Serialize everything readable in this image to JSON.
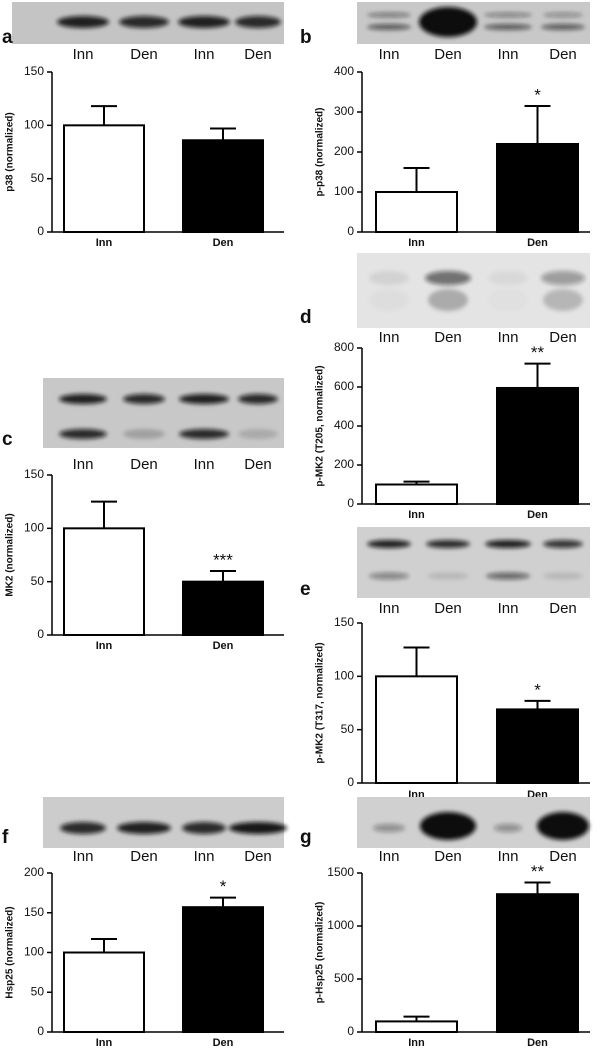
{
  "chart_data": [
    {
      "type": "bar",
      "panel": "a",
      "lane_labels": [
        "Inn",
        "Den",
        "Inn",
        "Den"
      ],
      "ylabel": "p38 (normalized)",
      "categories": [
        "Inn",
        "Den"
      ],
      "values": [
        100,
        86
      ],
      "errors": [
        18,
        11
      ],
      "bar_colors": [
        "#ffffff",
        "#000000"
      ],
      "ylim": [
        0,
        150
      ],
      "yticks": [
        0,
        50,
        100,
        150
      ]
    },
    {
      "type": "bar",
      "panel": "b",
      "lane_labels": [
        "Inn",
        "Den",
        "Inn",
        "Den"
      ],
      "ylabel": "p-p38 (normalized)",
      "categories": [
        "Inn",
        "Den"
      ],
      "values": [
        100,
        220
      ],
      "errors": [
        60,
        95
      ],
      "bar_colors": [
        "#ffffff",
        "#000000"
      ],
      "annotation": "*",
      "ylim": [
        0,
        400
      ],
      "yticks": [
        0,
        100,
        200,
        300,
        400
      ]
    },
    {
      "type": "bar",
      "panel": "c",
      "lane_labels": [
        "Inn",
        "Den",
        "Inn",
        "Den"
      ],
      "ylabel": "MK2 (normalized)",
      "categories": [
        "Inn",
        "Den"
      ],
      "values": [
        100,
        50
      ],
      "errors": [
        25,
        10
      ],
      "bar_colors": [
        "#ffffff",
        "#000000"
      ],
      "annotation": "***",
      "ylim": [
        0,
        150
      ],
      "yticks": [
        0,
        50,
        100,
        150
      ]
    },
    {
      "type": "bar",
      "panel": "d",
      "lane_labels": [
        "Inn",
        "Den",
        "Inn",
        "Den"
      ],
      "ylabel": "p-MK2 (T205, normalized)",
      "categories": [
        "Inn",
        "Den"
      ],
      "values": [
        100,
        595
      ],
      "errors": [
        15,
        125
      ],
      "bar_colors": [
        "#ffffff",
        "#000000"
      ],
      "annotation": "**",
      "ylim": [
        0,
        800
      ],
      "yticks": [
        0,
        200,
        400,
        600,
        800
      ]
    },
    {
      "type": "bar",
      "panel": "e",
      "lane_labels": [
        "Inn",
        "Den",
        "Inn",
        "Den"
      ],
      "ylabel": "p-MK2 (T317, normalized)",
      "categories": [
        "Inn",
        "Den"
      ],
      "values": [
        100,
        69
      ],
      "errors": [
        27,
        8
      ],
      "bar_colors": [
        "#ffffff",
        "#000000"
      ],
      "annotation": "*",
      "ylim": [
        0,
        150
      ],
      "yticks": [
        0,
        50,
        100,
        150
      ]
    },
    {
      "type": "bar",
      "panel": "f",
      "lane_labels": [
        "Inn",
        "Den",
        "Inn",
        "Den"
      ],
      "ylabel": "Hsp25 (normalized)",
      "categories": [
        "Inn",
        "Den"
      ],
      "values": [
        100,
        157
      ],
      "errors": [
        17,
        12
      ],
      "bar_colors": [
        "#ffffff",
        "#000000"
      ],
      "annotation": "*",
      "ylim": [
        0,
        200
      ],
      "yticks": [
        0,
        50,
        100,
        150,
        200
      ]
    },
    {
      "type": "bar",
      "panel": "g",
      "lane_labels": [
        "Inn",
        "Den",
        "Inn",
        "Den"
      ],
      "ylabel": "p-Hsp25 (normalized)",
      "categories": [
        "Inn",
        "Den"
      ],
      "values": [
        100,
        1300
      ],
      "errors": [
        45,
        110
      ],
      "bar_colors": [
        "#ffffff",
        "#000000"
      ],
      "annotation": "**",
      "ylim": [
        0,
        1500
      ],
      "yticks": [
        0,
        500,
        1000,
        1500
      ]
    }
  ]
}
